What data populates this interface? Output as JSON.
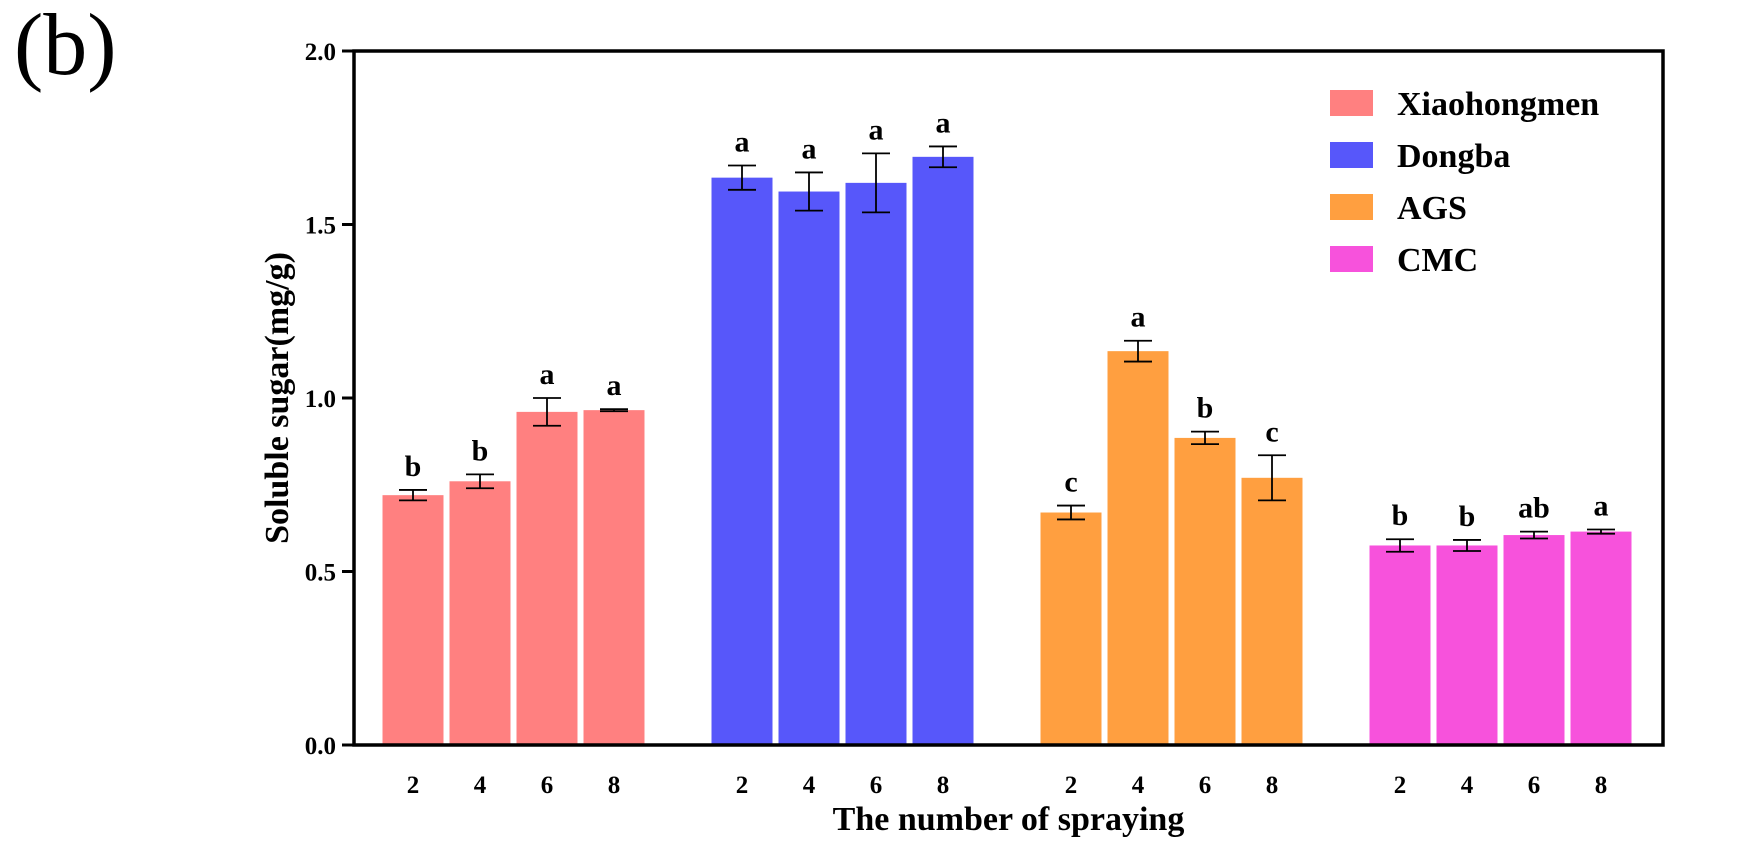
{
  "panel_label": "(b)",
  "chart_data": {
    "type": "bar",
    "title": "",
    "xlabel": "The number of spraying",
    "ylabel": "Soluble sugar(mg/g)",
    "ylim": [
      0,
      2.0
    ],
    "yticks": [
      "0.0",
      "0.5",
      "1.0",
      "1.5",
      "2.0"
    ],
    "ytick_values": [
      0,
      0.5,
      1.0,
      1.5,
      2.0
    ],
    "legend_position": "top-right",
    "grid": false,
    "categories": [
      "2",
      "4",
      "6",
      "8"
    ],
    "series": [
      {
        "name": "Xiaohongmen",
        "color": "#FF8080",
        "values": [
          0.72,
          0.76,
          0.96,
          0.965
        ],
        "errors": [
          0.015,
          0.02,
          0.04,
          0.003
        ],
        "labels": [
          "b",
          "b",
          "a",
          "a"
        ]
      },
      {
        "name": "Dongba",
        "color": "#5757FA",
        "values": [
          1.635,
          1.595,
          1.62,
          1.695
        ],
        "errors": [
          0.035,
          0.055,
          0.085,
          0.03
        ],
        "labels": [
          "a",
          "a",
          "a",
          "a"
        ]
      },
      {
        "name": "AGS",
        "color": "#FF9F40",
        "values": [
          0.67,
          1.135,
          0.885,
          0.77
        ],
        "errors": [
          0.02,
          0.03,
          0.018,
          0.065
        ],
        "labels": [
          "c",
          "a",
          "b",
          "c"
        ]
      },
      {
        "name": "CMC",
        "color": "#F752DC",
        "values": [
          0.575,
          0.575,
          0.605,
          0.615
        ],
        "errors": [
          0.018,
          0.016,
          0.01,
          0.006
        ],
        "labels": [
          "b",
          "b",
          "ab",
          "a"
        ]
      }
    ]
  }
}
